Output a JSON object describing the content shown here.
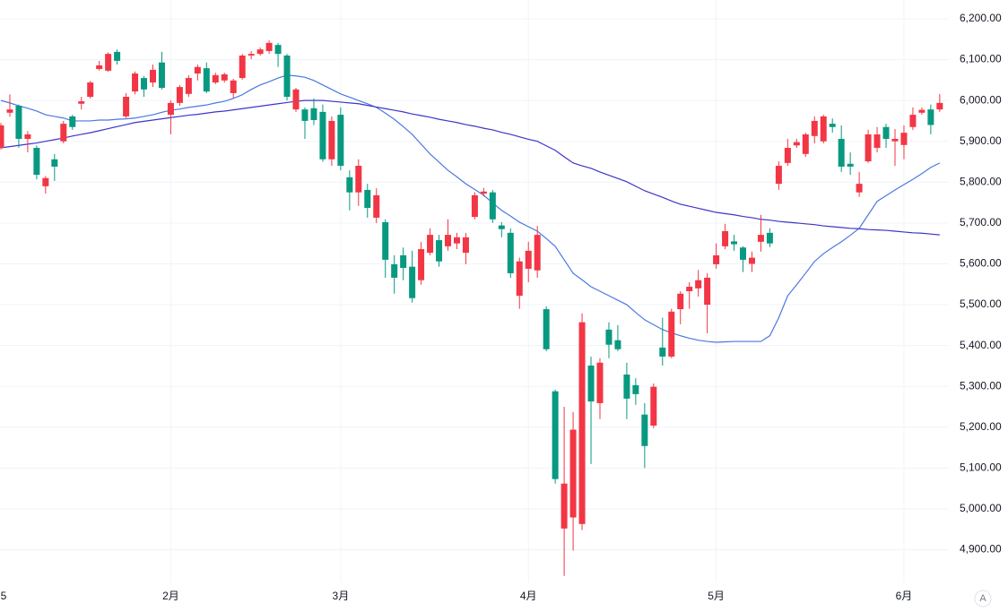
{
  "chart_data": {
    "type": "candlestick",
    "categories": [
      "5",
      null,
      null,
      null,
      null,
      null,
      null,
      null,
      null,
      null,
      null,
      null,
      null,
      null,
      null,
      null,
      null,
      null,
      null,
      "2月",
      null,
      null,
      null,
      null,
      null,
      null,
      null,
      null,
      null,
      null,
      null,
      null,
      null,
      null,
      null,
      null,
      null,
      null,
      "3月",
      null,
      null,
      null,
      null,
      null,
      null,
      null,
      null,
      null,
      null,
      null,
      null,
      null,
      null,
      null,
      null,
      null,
      null,
      null,
      null,
      "4月",
      null,
      null,
      null,
      null,
      null,
      null,
      null,
      null,
      null,
      null,
      null,
      null,
      null,
      null,
      null,
      null,
      null,
      null,
      null,
      null,
      "5月",
      null,
      null,
      null,
      null,
      null,
      null,
      null,
      null,
      null,
      null,
      null,
      null,
      null,
      null,
      null,
      null,
      null,
      null,
      null,
      null,
      "6月",
      null,
      null,
      null,
      null
    ],
    "open": [
      5884,
      5970,
      5987,
      5906,
      5884,
      5790,
      5856,
      5900,
      5961,
      5992,
      6009,
      6077,
      6073,
      6119,
      5961,
      6022,
      6055,
      6044,
      6093,
      5965,
      5994,
      6016,
      6066,
      6079,
      6044,
      6049,
      6018,
      6055,
      6110,
      6114,
      6121,
      6136,
      6110,
      5978,
      5978,
      5981,
      5972,
      5856,
      5965,
      5812,
      5775,
      5781,
      5713,
      5702,
      5599,
      5621,
      5593,
      5560,
      5627,
      5658,
      5643,
      5650,
      5627,
      5715,
      5772,
      5775,
      5694,
      5676,
      5522,
      5588,
      5584,
      5489,
      5288,
      4952,
      4979,
      4963,
      5351,
      5259,
      5439,
      5413,
      5329,
      5303,
      5231,
      5204,
      5395,
      5373,
      5489,
      5533,
      5540,
      5500,
      5599,
      5643,
      5655,
      5640,
      5600,
      5654,
      5676,
      5796,
      5847,
      5890,
      5869,
      5913,
      5900,
      5943,
      5906,
      5845,
      5775,
      5851,
      5884,
      5935,
      5900,
      5891,
      5935,
      5970,
      5978,
      5978
    ],
    "high": [
      5945,
      6015,
      5990,
      5925,
      5890,
      5815,
      5869,
      5950,
      5965,
      6009,
      6048,
      6097,
      6118,
      6125,
      6018,
      6071,
      6060,
      6088,
      6119,
      6000,
      6038,
      6062,
      6088,
      6093,
      6068,
      6068,
      6053,
      6114,
      6121,
      6130,
      6147,
      6141,
      6114,
      6031,
      5983,
      6005,
      5990,
      5961,
      5983,
      5829,
      5856,
      5796,
      5785,
      5709,
      5621,
      5640,
      5632,
      5654,
      5687,
      5671,
      5709,
      5676,
      5676,
      5775,
      5786,
      5781,
      5702,
      5687,
      5615,
      5654,
      5693,
      5496,
      5292,
      5250,
      5237,
      5479,
      5373,
      5369,
      5457,
      5450,
      5358,
      5320,
      5259,
      5307,
      5468,
      5490,
      5533,
      5555,
      5585,
      5577,
      5650,
      5698,
      5671,
      5643,
      5630,
      5720,
      5687,
      5851,
      5906,
      5906,
      5921,
      5961,
      5965,
      5956,
      5939,
      5873,
      5825,
      5928,
      5935,
      5943,
      5930,
      5939,
      5983,
      5983,
      5990,
      6016
    ],
    "low": [
      5880,
      5960,
      5884,
      5873,
      5807,
      5772,
      5803,
      5895,
      5928,
      5978,
      6005,
      6073,
      6070,
      6088,
      5957,
      6015,
      6009,
      6033,
      6027,
      5917,
      5987,
      6009,
      6049,
      6018,
      6040,
      6044,
      6005,
      6051,
      6101,
      6110,
      6114,
      6082,
      6000,
      5972,
      5906,
      5940,
      5850,
      5840,
      5829,
      5731,
      5742,
      5713,
      5700,
      5566,
      5527,
      5560,
      5505,
      5549,
      5621,
      5593,
      5632,
      5636,
      5599,
      5709,
      5765,
      5700,
      5665,
      5566,
      5490,
      5555,
      5566,
      5386,
      5062,
      4836,
      4898,
      4948,
      5110,
      5220,
      5369,
      5386,
      5220,
      5255,
      5100,
      5198,
      5351,
      5369,
      5452,
      5490,
      5520,
      5430,
      5588,
      5636,
      5632,
      5580,
      5580,
      5630,
      5641,
      5781,
      5840,
      5884,
      5862,
      5895,
      5895,
      5921,
      5825,
      5818,
      5764,
      5847,
      5873,
      5884,
      5840,
      5856,
      5928,
      5965,
      5917,
      5972
    ],
    "close": [
      5939,
      5978,
      5906,
      5917,
      5818,
      5810,
      5838,
      5943,
      5935,
      5998,
      6044,
      6086,
      6114,
      6097,
      6009,
      6066,
      6027,
      6075,
      6031,
      5994,
      6033,
      6055,
      6082,
      6022,
      6062,
      6064,
      6049,
      6110,
      6114,
      6125,
      6141,
      6114,
      6009,
      6027,
      5950,
      5952,
      5856,
      5950,
      5840,
      5775,
      5840,
      5737,
      5768,
      5610,
      5566,
      5590,
      5516,
      5636,
      5671,
      5606,
      5671,
      5665,
      5665,
      5768,
      5777,
      5709,
      5685,
      5577,
      5606,
      5632,
      5671,
      5391,
      5073,
      5062,
      5194,
      5457,
      5263,
      5358,
      5402,
      5391,
      5270,
      5281,
      5154,
      5299,
      5373,
      5483,
      5527,
      5544,
      5560,
      5566,
      5621,
      5680,
      5648,
      5610,
      5615,
      5671,
      5650,
      5840,
      5884,
      5898,
      5917,
      5950,
      5961,
      5935,
      5838,
      5838,
      5796,
      5917,
      5917,
      5906,
      5906,
      5921,
      5965,
      5977,
      5940,
      5994
    ],
    "up_color": "#f23645",
    "down_color": "#089981",
    "lines": [
      {
        "color": "#4a78e0",
        "values": [
          6000,
          5994,
          5987,
          5981,
          5974,
          5965,
          5961,
          5957,
          5950,
          5950,
          5950,
          5952,
          5952,
          5954,
          5955,
          5957,
          5961,
          5965,
          5971,
          5976,
          5979,
          5983,
          5986,
          5989,
          5994,
          5998,
          6005,
          6014,
          6027,
          6038,
          6046,
          6055,
          6062,
          6060,
          6057,
          6049,
          6038,
          6027,
          6016,
          6008,
          6000,
          5992,
          5983,
          5969,
          5954,
          5936,
          5917,
          5893,
          5869,
          5849,
          5829,
          5813,
          5796,
          5782,
          5768,
          5749,
          5731,
          5717,
          5702,
          5691,
          5680,
          5662,
          5643,
          5610,
          5577,
          5561,
          5544,
          5533,
          5522,
          5511,
          5500,
          5481,
          5463,
          5451,
          5439,
          5431,
          5424,
          5418,
          5413,
          5410,
          5408,
          5409,
          5410,
          5410,
          5410,
          5410,
          5424,
          5468,
          5522,
          5549,
          5577,
          5606,
          5625,
          5640,
          5654,
          5670,
          5687,
          5720,
          5753,
          5767,
          5781,
          5794,
          5807,
          5821,
          5836,
          5847
        ]
      },
      {
        "color": "#3d35c8",
        "values": [
          5884,
          5887,
          5890,
          5893,
          5896,
          5900,
          5904,
          5908,
          5913,
          5917,
          5921,
          5926,
          5931,
          5936,
          5941,
          5946,
          5949,
          5952,
          5955,
          5958,
          5961,
          5964,
          5966,
          5969,
          5972,
          5974,
          5977,
          5980,
          5983,
          5986,
          5989,
          5992,
          5995,
          5998,
          6000,
          6000,
          6000,
          5998,
          5996,
          5994,
          5992,
          5988,
          5984,
          5980,
          5976,
          5972,
          5967,
          5963,
          5959,
          5954,
          5950,
          5946,
          5941,
          5937,
          5932,
          5928,
          5922,
          5917,
          5911,
          5905,
          5900,
          5889,
          5878,
          5862,
          5847,
          5840,
          5834,
          5825,
          5817,
          5809,
          5801,
          5790,
          5779,
          5771,
          5763,
          5754,
          5746,
          5741,
          5736,
          5731,
          5726,
          5723,
          5720,
          5716,
          5713,
          5709,
          5707,
          5704,
          5702,
          5700,
          5698,
          5696,
          5693,
          5691,
          5689,
          5687,
          5686,
          5684,
          5683,
          5682,
          5680,
          5678,
          5676,
          5675,
          5673,
          5671
        ]
      }
    ],
    "ylim": [
      4820,
      6246
    ],
    "yticks": [
      {
        "value": 4900,
        "label": "4,900.00"
      },
      {
        "value": 5000,
        "label": "5,000.00"
      },
      {
        "value": 5100,
        "label": "5,100.00"
      },
      {
        "value": 5200,
        "label": "5,200.00"
      },
      {
        "value": 5300,
        "label": "5,300.00"
      },
      {
        "value": 5400,
        "label": "5,400.00"
      },
      {
        "value": 5500,
        "label": "5,500.00"
      },
      {
        "value": 5600,
        "label": "5,600.00"
      },
      {
        "value": 5700,
        "label": "5,700.00"
      },
      {
        "value": 5800,
        "label": "5,800.00"
      },
      {
        "value": 5900,
        "label": "5,900.00"
      },
      {
        "value": 6000,
        "label": "6,000.00"
      },
      {
        "value": 6100,
        "label": "6,100.00"
      },
      {
        "value": 6200,
        "label": "6,200.00"
      }
    ],
    "grid": true
  },
  "controls": {
    "auto_scale": "A"
  }
}
